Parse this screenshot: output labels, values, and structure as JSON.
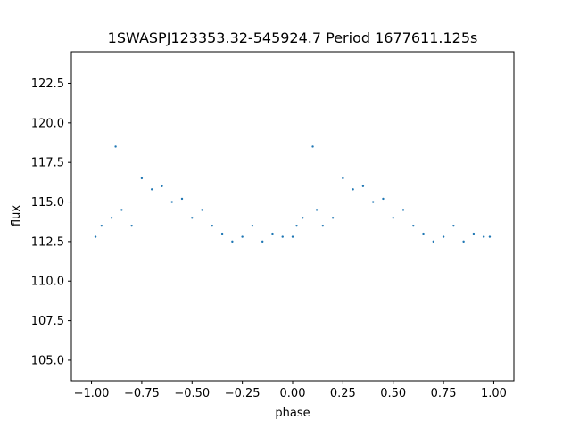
{
  "chart_data": {
    "type": "scatter",
    "title": "1SWASPJ123353.32-545924.7 Period 1677611.125s",
    "xlabel": "phase",
    "ylabel": "flux",
    "xlim": [
      -1.1,
      1.1
    ],
    "ylim": [
      103.7,
      124.5
    ],
    "x_ticks": [
      -1.0,
      -0.75,
      -0.5,
      -0.25,
      0.0,
      0.25,
      0.5,
      0.75,
      1.0
    ],
    "x_tick_labels": [
      "−1.00",
      "−0.75",
      "−0.50",
      "−0.25",
      "0.00",
      "0.25",
      "0.50",
      "0.75",
      "1.00"
    ],
    "y_ticks": [
      105.0,
      107.5,
      110.0,
      112.5,
      115.0,
      117.5,
      120.0,
      122.5
    ],
    "y_tick_labels": [
      "105.0",
      "107.5",
      "110.0",
      "112.5",
      "115.0",
      "117.5",
      "120.0",
      "122.5"
    ],
    "grid": false,
    "marker_color": "#1f77b4",
    "series": [
      {
        "x": [
          -0.98,
          -0.95,
          -0.9,
          -0.88,
          -0.85,
          -0.8,
          -0.75,
          -0.7,
          -0.65,
          -0.6,
          -0.55,
          -0.5,
          -0.45,
          -0.4,
          -0.35,
          -0.3,
          -0.25,
          -0.2,
          -0.15,
          -0.1,
          -0.05,
          0.0,
          0.02,
          0.05,
          0.1,
          0.12,
          0.15,
          0.2,
          0.25,
          0.3,
          0.35,
          0.4,
          0.45,
          0.5,
          0.55,
          0.6,
          0.65,
          0.7,
          0.75,
          0.8,
          0.85,
          0.9,
          0.95,
          0.98
        ],
        "y": [
          112.8,
          113.5,
          114.0,
          118.5,
          114.5,
          113.5,
          116.5,
          115.8,
          116.0,
          115.0,
          115.2,
          114.0,
          114.5,
          113.5,
          113.0,
          112.5,
          112.8,
          113.5,
          112.5,
          113.0,
          112.8,
          112.8,
          113.5,
          114.0,
          118.5,
          114.5,
          113.5,
          114.0,
          116.5,
          115.8,
          116.0,
          115.0,
          115.2,
          114.0,
          114.5,
          113.5,
          113.0,
          112.5,
          112.8,
          113.5,
          112.5,
          113.0,
          112.8,
          112.8
        ]
      }
    ]
  }
}
